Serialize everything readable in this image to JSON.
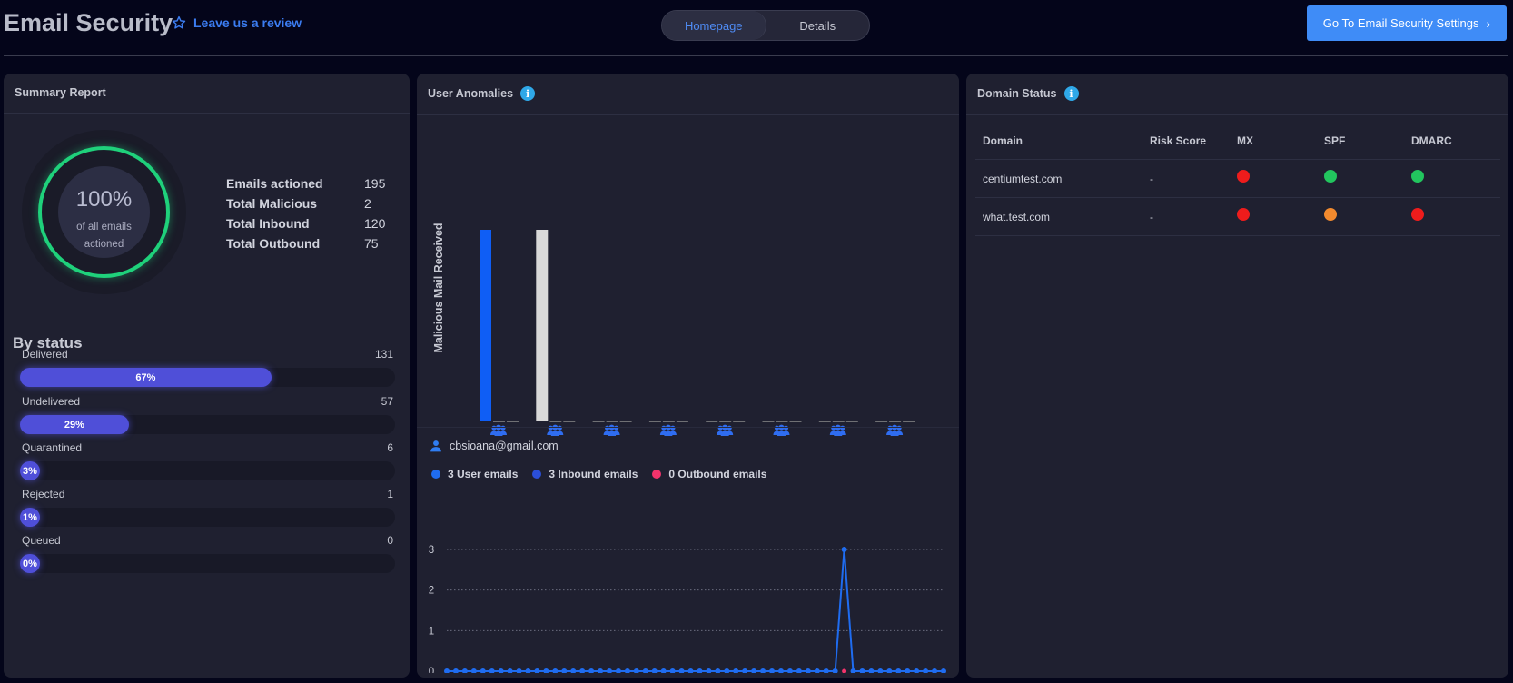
{
  "header": {
    "title": "Email Security",
    "review_link": "Leave us a review",
    "tabs": [
      {
        "label": "Homepage",
        "active": true
      },
      {
        "label": "Details",
        "active": false
      }
    ],
    "settings_button": "Go To Email Security Settings"
  },
  "summary": {
    "title": "Summary Report",
    "percent": "100%",
    "percent_caption": "of all emails actioned",
    "stats": [
      {
        "label": "Emails actioned",
        "value": "195"
      },
      {
        "label": "Total Malicious",
        "value": "2"
      },
      {
        "label": "Total Inbound",
        "value": "120"
      },
      {
        "label": "Total Outbound",
        "value": "75"
      }
    ],
    "by_status_title": "By status",
    "statuses": [
      {
        "label": "Delivered",
        "count": "131",
        "percent": 67,
        "percent_label": "67%"
      },
      {
        "label": "Undelivered",
        "count": "57",
        "percent": 29,
        "percent_label": "29%"
      },
      {
        "label": "Quarantined",
        "count": "6",
        "percent": 3,
        "percent_label": "3%"
      },
      {
        "label": "Rejected",
        "count": "1",
        "percent": 1,
        "percent_label": "1%"
      },
      {
        "label": "Queued",
        "count": "0",
        "percent": 0,
        "percent_label": "0%"
      }
    ]
  },
  "anomalies": {
    "title": "User Anomalies",
    "user_email": "cbsioana@gmail.com",
    "legend": [
      {
        "label": "3 User emails",
        "color": "#1f6cf0"
      },
      {
        "label": "3 Inbound emails",
        "color": "#2b4fd8"
      },
      {
        "label": "0 Outbound emails",
        "color": "#f2336b"
      }
    ]
  },
  "chart_data": [
    {
      "type": "bar",
      "ylabel": "Malicious Mail Received",
      "groups": 8,
      "bars_per_group": 3,
      "values": [
        [
          1,
          0,
          0
        ],
        [
          1,
          0,
          0
        ],
        [
          0,
          0,
          0
        ],
        [
          0,
          0,
          0
        ],
        [
          0,
          0,
          0
        ],
        [
          0,
          0,
          0
        ],
        [
          0,
          0,
          0
        ],
        [
          0,
          0,
          0
        ]
      ],
      "colors": [
        "#0f5ef5",
        "#d9d9d9",
        "#8a8a8a"
      ],
      "category_icon": "users-icon"
    },
    {
      "type": "line",
      "yticks": [
        "0",
        "1",
        "2",
        "3"
      ],
      "ylim": [
        0,
        3
      ],
      "points": 56,
      "series": [
        {
          "color": "#1f6cf0",
          "peak_index": 44,
          "peak_value": 3
        },
        {
          "color": "#f2336b",
          "values_all": 0
        }
      ],
      "grid": true
    }
  ],
  "domain_status": {
    "title": "Domain Status",
    "columns": [
      "Domain",
      "Risk Score",
      "MX",
      "SPF",
      "DMARC"
    ],
    "rows": [
      {
        "domain": "centiumtest.com",
        "risk": "-",
        "mx": "#ee1c1c",
        "spf": "#22c55e",
        "dmarc": "#22c55e"
      },
      {
        "domain": "what.test.com",
        "risk": "-",
        "mx": "#ee1c1c",
        "spf": "#f28a2e",
        "dmarc": "#ee1c1c"
      }
    ]
  }
}
